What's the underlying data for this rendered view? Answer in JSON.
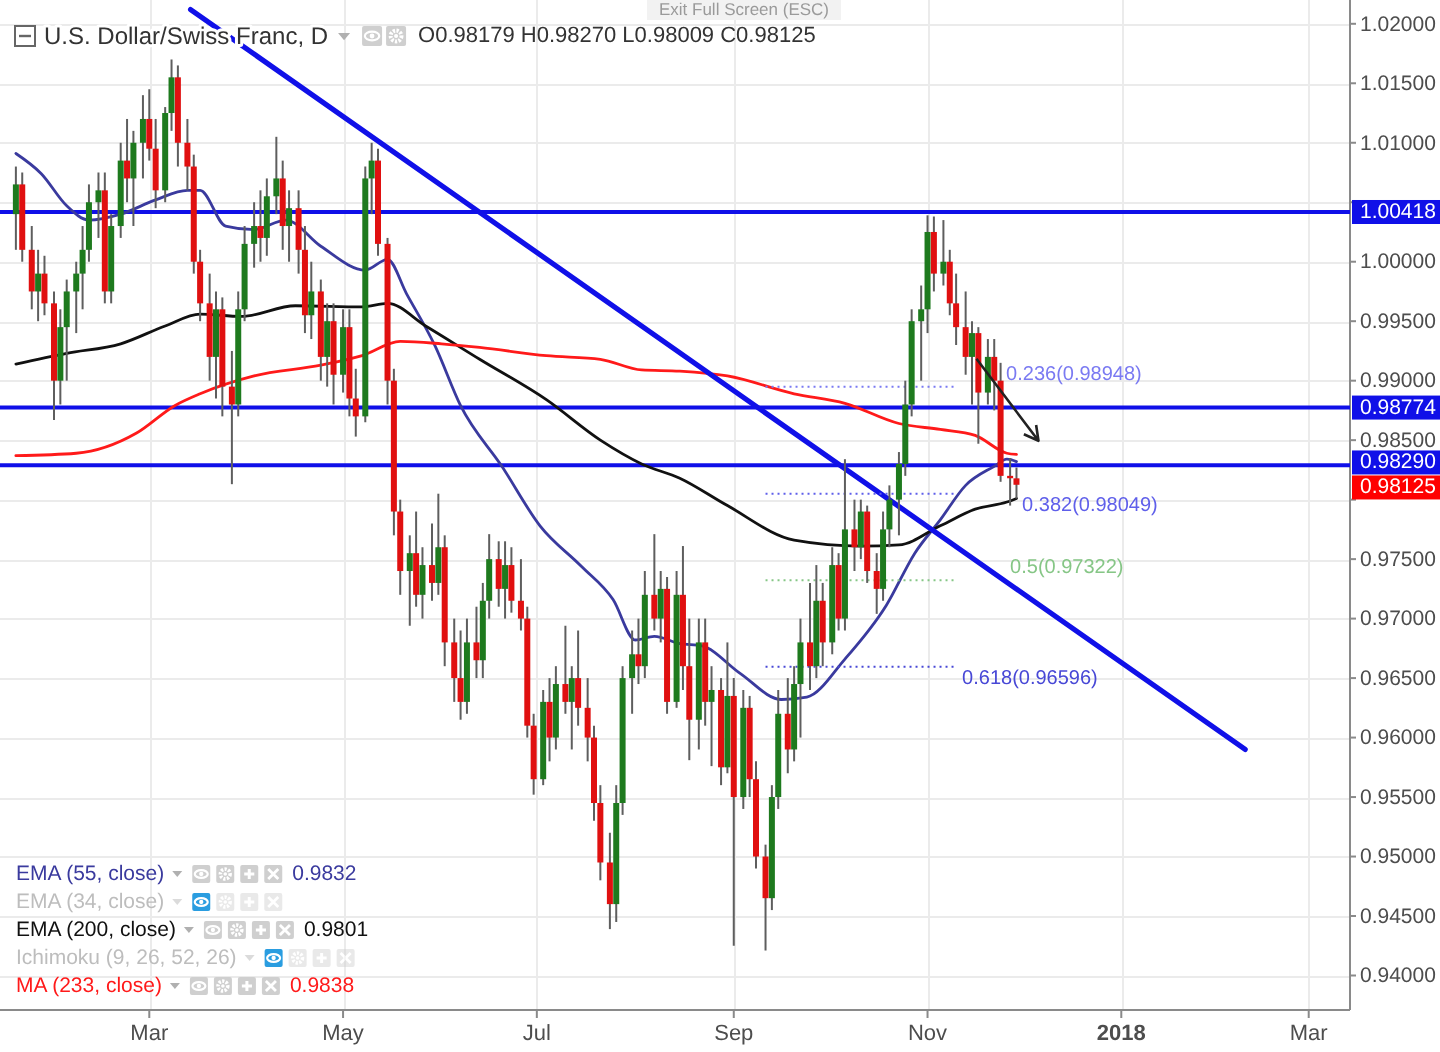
{
  "chart_data": {
    "type": "candlestick",
    "title": "U.S. Dollar/Swiss Franc, D",
    "subtitle": "O0.98179 H0.98270 L0.98009 C0.98125",
    "x": [
      "2017-01-18",
      "2017-01-20",
      "2017-01-23",
      "2017-01-25",
      "2017-01-27",
      "2017-01-30",
      "2017-02-01",
      "2017-02-03",
      "2017-02-06",
      "2017-02-08",
      "2017-02-10",
      "2017-02-13",
      "2017-02-15",
      "2017-02-17",
      "2017-02-20",
      "2017-02-22",
      "2017-02-24",
      "2017-02-27",
      "2017-03-01",
      "2017-03-03",
      "2017-03-06",
      "2017-03-08",
      "2017-03-10",
      "2017-03-13",
      "2017-03-15",
      "2017-03-17",
      "2017-03-20",
      "2017-03-22",
      "2017-03-24",
      "2017-03-27",
      "2017-03-29",
      "2017-03-31",
      "2017-04-03",
      "2017-04-05",
      "2017-04-07",
      "2017-04-10",
      "2017-04-12",
      "2017-04-14",
      "2017-04-17",
      "2017-04-19",
      "2017-04-21",
      "2017-04-24",
      "2017-04-26",
      "2017-04-28",
      "2017-05-01",
      "2017-05-03",
      "2017-05-05",
      "2017-05-08",
      "2017-05-10",
      "2017-05-12",
      "2017-05-15",
      "2017-05-17",
      "2017-05-19",
      "2017-05-22",
      "2017-05-24",
      "2017-05-26",
      "2017-05-29",
      "2017-05-31",
      "2017-06-02",
      "2017-06-05",
      "2017-06-07",
      "2017-06-09",
      "2017-06-12",
      "2017-06-14",
      "2017-06-16",
      "2017-06-19",
      "2017-06-21",
      "2017-06-23",
      "2017-06-26",
      "2017-06-28",
      "2017-06-30",
      "2017-07-03",
      "2017-07-05",
      "2017-07-07",
      "2017-07-10",
      "2017-07-12",
      "2017-07-14",
      "2017-07-17",
      "2017-07-19",
      "2017-07-21",
      "2017-07-24",
      "2017-07-26",
      "2017-07-28",
      "2017-07-31",
      "2017-08-02",
      "2017-08-04",
      "2017-08-07",
      "2017-08-09",
      "2017-08-11",
      "2017-08-14",
      "2017-08-16",
      "2017-08-18",
      "2017-08-21",
      "2017-08-23",
      "2017-08-25",
      "2017-08-28",
      "2017-08-30",
      "2017-09-01",
      "2017-09-04",
      "2017-09-06",
      "2017-09-08",
      "2017-09-11",
      "2017-09-13",
      "2017-09-15",
      "2017-09-18",
      "2017-09-20",
      "2017-09-22",
      "2017-09-25",
      "2017-09-27",
      "2017-09-29",
      "2017-10-02",
      "2017-10-04",
      "2017-10-06",
      "2017-10-09",
      "2017-10-11",
      "2017-10-13",
      "2017-10-16",
      "2017-10-18",
      "2017-10-20",
      "2017-10-23",
      "2017-10-25",
      "2017-10-27",
      "2017-10-30",
      "2017-11-01",
      "2017-11-03",
      "2017-11-06",
      "2017-11-08",
      "2017-11-10",
      "2017-11-13",
      "2017-11-15",
      "2017-11-17",
      "2017-11-20",
      "2017-11-22",
      "2017-11-24",
      "2017-11-27",
      "2017-11-29"
    ],
    "ohlc": [
      [
        1.004,
        1.008,
        1.001,
        1.0065
      ],
      [
        1.0065,
        1.0075,
        1.0,
        1.001
      ],
      [
        1.001,
        1.003,
        0.996,
        0.9975
      ],
      [
        0.9975,
        1.001,
        0.995,
        0.999
      ],
      [
        0.999,
        1.0005,
        0.9955,
        0.9965
      ],
      [
        0.9965,
        0.9975,
        0.9867,
        0.99
      ],
      [
        0.99,
        0.996,
        0.988,
        0.9945
      ],
      [
        0.9945,
        0.9985,
        0.99,
        0.9975
      ],
      [
        0.9975,
        1.0,
        0.994,
        0.999
      ],
      [
        0.999,
        1.003,
        0.996,
        1.001
      ],
      [
        1.001,
        1.0065,
        1.0,
        1.005
      ],
      [
        1.005,
        1.0075,
        1.002,
        1.006
      ],
      [
        1.006,
        1.0075,
        0.9965,
        0.9975
      ],
      [
        0.9975,
        1.004,
        0.9965,
        1.003
      ],
      [
        1.003,
        1.01,
        1.002,
        1.0085
      ],
      [
        1.0085,
        1.012,
        1.005,
        1.007
      ],
      [
        1.007,
        1.011,
        1.003,
        1.01
      ],
      [
        1.01,
        1.014,
        1.007,
        1.012
      ],
      [
        1.012,
        1.0145,
        1.0085,
        1.0095
      ],
      [
        1.0095,
        1.012,
        1.0045,
        1.006
      ],
      [
        1.006,
        1.013,
        1.005,
        1.0125
      ],
      [
        1.0125,
        1.017,
        1.011,
        1.0155
      ],
      [
        1.0155,
        1.0165,
        1.008,
        1.01
      ],
      [
        1.01,
        1.012,
        1.006,
        1.008
      ],
      [
        1.008,
        1.009,
        0.999,
        1.0
      ],
      [
        1.0,
        1.001,
        0.995,
        0.9965
      ],
      [
        0.9965,
        0.999,
        0.99,
        0.992
      ],
      [
        0.992,
        0.9975,
        0.9885,
        0.996
      ],
      [
        0.996,
        0.997,
        0.987,
        0.9895
      ],
      [
        0.9895,
        0.9925,
        0.9813,
        0.988
      ],
      [
        0.988,
        0.9975,
        0.987,
        0.996
      ],
      [
        0.996,
        1.003,
        0.995,
        1.0015
      ],
      [
        1.0015,
        1.005,
        0.9995,
        1.003
      ],
      [
        1.003,
        1.006,
        1.0,
        1.002
      ],
      [
        1.002,
        1.007,
        1.0005,
        1.0055
      ],
      [
        1.0055,
        1.0105,
        1.004,
        1.007
      ],
      [
        1.007,
        1.0085,
        1.001,
        1.003
      ],
      [
        1.003,
        1.006,
        1.0,
        1.0045
      ],
      [
        1.0045,
        1.006,
        0.999,
        1.001
      ],
      [
        1.001,
        1.003,
        0.994,
        0.9955
      ],
      [
        0.9955,
        1.0,
        0.9935,
        0.9975
      ],
      [
        0.9975,
        0.9985,
        0.99,
        0.992
      ],
      [
        0.992,
        0.9965,
        0.9895,
        0.995
      ],
      [
        0.995,
        0.9965,
        0.988,
        0.9905
      ],
      [
        0.9905,
        0.996,
        0.989,
        0.9945
      ],
      [
        0.9945,
        0.996,
        0.987,
        0.9885
      ],
      [
        0.9885,
        0.991,
        0.9853,
        0.987
      ],
      [
        0.987,
        1.008,
        0.9865,
        1.007
      ],
      [
        1.007,
        1.01,
        1.004,
        1.0085
      ],
      [
        1.0085,
        1.0095,
        1.0005,
        1.0015
      ],
      [
        1.0015,
        1.002,
        0.988,
        0.99
      ],
      [
        0.99,
        0.991,
        0.977,
        0.979
      ],
      [
        0.979,
        0.98,
        0.972,
        0.974
      ],
      [
        0.974,
        0.977,
        0.9694,
        0.9755
      ],
      [
        0.9755,
        0.979,
        0.971,
        0.972
      ],
      [
        0.972,
        0.976,
        0.97,
        0.9745
      ],
      [
        0.9745,
        0.978,
        0.9715,
        0.973
      ],
      [
        0.973,
        0.9805,
        0.972,
        0.976
      ],
      [
        0.976,
        0.977,
        0.966,
        0.968
      ],
      [
        0.968,
        0.97,
        0.963,
        0.965
      ],
      [
        0.965,
        0.969,
        0.9615,
        0.963
      ],
      [
        0.963,
        0.97,
        0.962,
        0.968
      ],
      [
        0.968,
        0.971,
        0.965,
        0.9665
      ],
      [
        0.9665,
        0.973,
        0.965,
        0.9715
      ],
      [
        0.9715,
        0.9771,
        0.97,
        0.975
      ],
      [
        0.975,
        0.9765,
        0.971,
        0.9725
      ],
      [
        0.9725,
        0.9765,
        0.97,
        0.9745
      ],
      [
        0.9745,
        0.976,
        0.9705,
        0.9715
      ],
      [
        0.9715,
        0.975,
        0.969,
        0.97
      ],
      [
        0.97,
        0.971,
        0.96,
        0.961
      ],
      [
        0.961,
        0.962,
        0.9552,
        0.9565
      ],
      [
        0.9565,
        0.964,
        0.956,
        0.963
      ],
      [
        0.963,
        0.965,
        0.958,
        0.96
      ],
      [
        0.96,
        0.966,
        0.959,
        0.9645
      ],
      [
        0.9645,
        0.9694,
        0.962,
        0.963
      ],
      [
        0.963,
        0.966,
        0.959,
        0.965
      ],
      [
        0.965,
        0.969,
        0.961,
        0.9625
      ],
      [
        0.9625,
        0.965,
        0.958,
        0.96
      ],
      [
        0.96,
        0.961,
        0.953,
        0.9545
      ],
      [
        0.9545,
        0.956,
        0.948,
        0.9495
      ],
      [
        0.9495,
        0.952,
        0.9439,
        0.946
      ],
      [
        0.946,
        0.956,
        0.9445,
        0.9545
      ],
      [
        0.9545,
        0.966,
        0.9535,
        0.965
      ],
      [
        0.965,
        0.969,
        0.962,
        0.967
      ],
      [
        0.967,
        0.97,
        0.9645,
        0.966
      ],
      [
        0.966,
        0.974,
        0.965,
        0.972
      ],
      [
        0.972,
        0.9771,
        0.969,
        0.97
      ],
      [
        0.97,
        0.974,
        0.968,
        0.9725
      ],
      [
        0.9725,
        0.9735,
        0.962,
        0.963
      ],
      [
        0.963,
        0.974,
        0.9625,
        0.972
      ],
      [
        0.972,
        0.9761,
        0.964,
        0.966
      ],
      [
        0.966,
        0.97,
        0.9581,
        0.9615
      ],
      [
        0.9615,
        0.97,
        0.959,
        0.968
      ],
      [
        0.968,
        0.97,
        0.961,
        0.963
      ],
      [
        0.963,
        0.966,
        0.9576,
        0.964
      ],
      [
        0.964,
        0.965,
        0.956,
        0.9575
      ],
      [
        0.9575,
        0.968,
        0.957,
        0.9635
      ],
      [
        0.9635,
        0.965,
        0.9425,
        0.955
      ],
      [
        0.955,
        0.964,
        0.954,
        0.9625
      ],
      [
        0.9625,
        0.9635,
        0.955,
        0.9565
      ],
      [
        0.9565,
        0.958,
        0.949,
        0.95
      ],
      [
        0.95,
        0.951,
        0.9421,
        0.9465
      ],
      [
        0.9465,
        0.956,
        0.9455,
        0.955
      ],
      [
        0.955,
        0.964,
        0.954,
        0.962
      ],
      [
        0.962,
        0.965,
        0.957,
        0.959
      ],
      [
        0.959,
        0.966,
        0.958,
        0.9645
      ],
      [
        0.9645,
        0.97,
        0.96,
        0.968
      ],
      [
        0.968,
        0.973,
        0.964,
        0.966
      ],
      [
        0.966,
        0.9745,
        0.965,
        0.9715
      ],
      [
        0.9715,
        0.973,
        0.966,
        0.968
      ],
      [
        0.968,
        0.976,
        0.967,
        0.9745
      ],
      [
        0.9745,
        0.9755,
        0.969,
        0.97
      ],
      [
        0.97,
        0.9834,
        0.969,
        0.9775
      ],
      [
        0.9775,
        0.98,
        0.974,
        0.976
      ],
      [
        0.976,
        0.98,
        0.975,
        0.979
      ],
      [
        0.979,
        0.9795,
        0.973,
        0.974
      ],
      [
        0.974,
        0.9755,
        0.9704,
        0.9725
      ],
      [
        0.9725,
        0.979,
        0.9715,
        0.9775
      ],
      [
        0.9775,
        0.9812,
        0.976,
        0.98
      ],
      [
        0.98,
        0.984,
        0.977,
        0.983
      ],
      [
        0.983,
        0.99,
        0.982,
        0.988
      ],
      [
        0.988,
        0.996,
        0.987,
        0.995
      ],
      [
        0.995,
        0.998,
        0.99,
        0.996
      ],
      [
        0.996,
        1.0039,
        0.994,
        1.0025
      ],
      [
        1.0025,
        1.0038,
        0.9975,
        0.999
      ],
      [
        0.999,
        1.0035,
        0.998,
        1.0
      ],
      [
        1.0,
        1.001,
        0.9955,
        0.9965
      ],
      [
        0.9965,
        0.999,
        0.993,
        0.9945
      ],
      [
        0.9945,
        0.9975,
        0.9905,
        0.992
      ],
      [
        0.992,
        0.995,
        0.988,
        0.994
      ],
      [
        0.994,
        0.9945,
        0.9847,
        0.989
      ],
      [
        0.989,
        0.9935,
        0.988,
        0.992
      ],
      [
        0.992,
        0.9935,
        0.9875,
        0.99
      ],
      [
        0.99,
        0.9915,
        0.9815,
        0.982
      ],
      [
        0.982,
        0.9835,
        0.9795,
        0.9818
      ],
      [
        0.98179,
        0.9827,
        0.98009,
        0.98125
      ]
    ],
    "series": [
      {
        "type": "line",
        "name": "EMA (55, close)",
        "color": "#3a3a9e",
        "x": [
          "2017-01-18",
          "2017-01-26",
          "2017-02-03",
          "2017-02-10",
          "2017-02-20",
          "2017-03-03",
          "2017-03-13",
          "2017-03-17",
          "2017-03-25",
          "2017-04-03",
          "2017-04-13",
          "2017-04-24",
          "2017-05-08",
          "2017-05-15",
          "2017-05-21",
          "2017-05-30",
          "2017-06-07",
          "2017-06-20",
          "2017-07-02",
          "2017-07-15",
          "2017-07-25",
          "2017-08-01",
          "2017-08-07",
          "2017-08-15",
          "2017-08-22",
          "2017-09-03",
          "2017-09-16",
          "2017-09-24",
          "2017-10-06",
          "2017-10-19",
          "2017-10-28",
          "2017-11-05",
          "2017-11-13",
          "2017-11-22",
          "2017-11-26",
          "2017-11-29"
        ],
        "values": [
          1.0091,
          1.0074,
          1.0047,
          1.0035,
          1.004,
          1.0052,
          1.006,
          1.006,
          1.003,
          1.0027,
          1.0035,
          1.0013,
          0.9993,
          1.0002,
          0.9973,
          0.9929,
          0.9879,
          0.9828,
          0.9778,
          0.9744,
          0.9716,
          0.9682,
          0.9685,
          0.9679,
          0.9677,
          0.9654,
          0.9632,
          0.9634,
          0.9666,
          0.9711,
          0.9755,
          0.9783,
          0.9812,
          0.9828,
          0.9834,
          0.9832
        ]
      },
      {
        "type": "line",
        "name": "EMA (200, close)",
        "color": "#111111",
        "x": [
          "2017-01-18",
          "2017-02-03",
          "2017-02-20",
          "2017-03-06",
          "2017-03-17",
          "2017-03-30",
          "2017-04-16",
          "2017-05-07",
          "2017-05-15",
          "2017-05-27",
          "2017-06-13",
          "2017-07-04",
          "2017-07-21",
          "2017-08-03",
          "2017-08-15",
          "2017-08-30",
          "2017-09-20",
          "2017-10-11",
          "2017-10-23",
          "2017-11-05",
          "2017-11-16",
          "2017-11-26",
          "2017-11-29"
        ],
        "values": [
          0.9914,
          0.9923,
          0.9931,
          0.9946,
          0.9956,
          0.9954,
          0.9963,
          0.9962,
          0.9965,
          0.9946,
          0.9918,
          0.9884,
          0.985,
          0.983,
          0.9818,
          0.9795,
          0.9766,
          0.9761,
          0.9762,
          0.9778,
          0.9792,
          0.9798,
          0.9801
        ]
      },
      {
        "type": "line",
        "name": "MA (233, close)",
        "color": "#ff1a1a",
        "x": [
          "2017-01-18",
          "2017-02-06",
          "2017-02-25",
          "2017-03-09",
          "2017-03-17",
          "2017-04-03",
          "2017-04-24",
          "2017-05-07",
          "2017-05-19",
          "2017-06-01",
          "2017-06-13",
          "2017-07-04",
          "2017-07-21",
          "2017-08-03",
          "2017-08-15",
          "2017-08-30",
          "2017-09-20",
          "2017-10-06",
          "2017-10-23",
          "2017-11-05",
          "2017-11-16",
          "2017-11-26",
          "2017-11-29"
        ],
        "values": [
          0.9837,
          0.9839,
          0.9856,
          0.9879,
          0.9889,
          0.9904,
          0.9913,
          0.9921,
          0.9933,
          0.9931,
          0.9928,
          0.9921,
          0.9918,
          0.9909,
          0.9908,
          0.9904,
          0.9889,
          0.9881,
          0.9864,
          0.9859,
          0.9854,
          0.9839,
          0.9838
        ]
      },
      {
        "type": "line",
        "color": "#1010e8",
        "x": [
          "2017-03-14",
          "2018-02-09"
        ],
        "values": [
          1.0212,
          0.959
        ]
      },
      {
        "type": "line",
        "name": "0.236(0.98948)",
        "color": "#7a7af2",
        "line_style": "dotted",
        "x": [
          "2017-09-11",
          "2017-11-10"
        ],
        "values": [
          0.98948,
          0.98948
        ]
      },
      {
        "type": "line",
        "name": "0.382(0.98049)",
        "color": "#5f5fea",
        "line_style": "dotted",
        "x": [
          "2017-09-11",
          "2017-11-10"
        ],
        "values": [
          0.98049,
          0.98049
        ]
      },
      {
        "type": "line",
        "name": "0.5(0.97322)",
        "color": "#86c686",
        "line_style": "dotted",
        "x": [
          "2017-09-11",
          "2017-11-10"
        ],
        "values": [
          0.97322,
          0.97322
        ]
      },
      {
        "type": "line",
        "name": "0.618(0.96596)",
        "color": "#4848d6",
        "line_style": "dotted",
        "x": [
          "2017-09-11",
          "2017-11-10"
        ],
        "values": [
          0.96596,
          0.96596
        ]
      }
    ],
    "xlim": [
      "2017-01-13",
      "2018-03-14"
    ],
    "xticks": [
      {
        "value": "2017-03-01",
        "label": "Mar"
      },
      {
        "value": "2017-05-01",
        "label": "May"
      },
      {
        "value": "2017-07-01",
        "label": "Jul"
      },
      {
        "value": "2017-09-01",
        "label": "Sep"
      },
      {
        "value": "2017-11-01",
        "label": "Nov"
      },
      {
        "value": "2018-01-01",
        "label": "2018"
      },
      {
        "value": "2018-03-01",
        "label": "Mar"
      }
    ],
    "ylim": [
      0.9371,
      1.022
    ],
    "yticks": [
      {
        "value": 0.94,
        "label": "0.94000"
      },
      {
        "value": 0.945,
        "label": "0.94500"
      },
      {
        "value": 0.95,
        "label": "0.95000"
      },
      {
        "value": 0.955,
        "label": "0.95500"
      },
      {
        "value": 0.96,
        "label": "0.96000"
      },
      {
        "value": 0.965,
        "label": "0.96500"
      },
      {
        "value": 0.97,
        "label": "0.97000"
      },
      {
        "value": 0.975,
        "label": "0.97500"
      },
      {
        "value": 0.98,
        "label": null
      },
      {
        "value": 0.985,
        "label": "0.98500"
      },
      {
        "value": 0.99,
        "label": "0.99000"
      },
      {
        "value": 0.995,
        "label": "0.99500"
      },
      {
        "value": 1.0,
        "label": "1.00000"
      },
      {
        "value": 1.005,
        "label": null
      },
      {
        "value": 1.01,
        "label": "1.01000"
      },
      {
        "value": 1.015,
        "label": "1.01500"
      },
      {
        "value": 1.02,
        "label": "1.02000"
      }
    ],
    "ref_lines": [
      {
        "axis": "y",
        "value": 1.00418,
        "label": "1.00418",
        "color": "#1010e8"
      },
      {
        "axis": "y",
        "value": 0.98774,
        "label": "0.98774",
        "color": "#1010e8"
      },
      {
        "axis": "y",
        "value": 0.9829,
        "label": "0.98290",
        "color": "#1010e8"
      }
    ],
    "grid": true,
    "legend": "bottom left",
    "annotations": [
      "Exit Full Screen (ESC)",
      "0.98125",
      "0.9832",
      "EMA (34, close)",
      "0.9801",
      "Ichimoku (9, 26, 52, 26)",
      "0.9838"
    ]
  }
}
